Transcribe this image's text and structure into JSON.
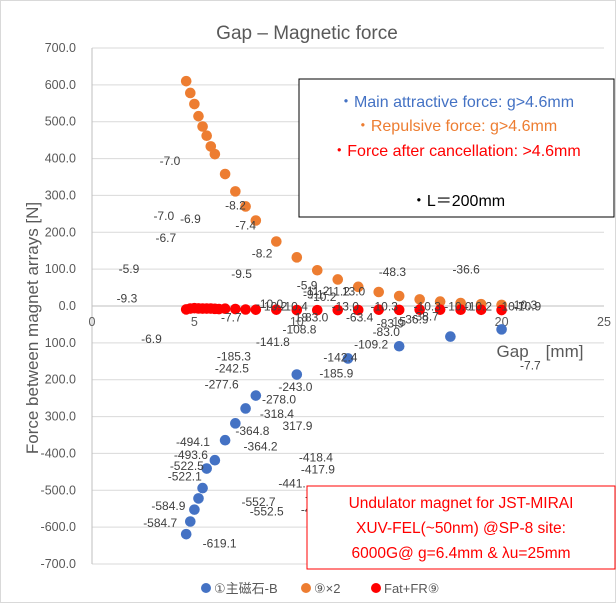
{
  "chart_data": {
    "type": "scatter",
    "title": "Gap – Magnetic force",
    "xlabel": "Gap　[mm]",
    "ylabel": "Force between magnet arrays [N]",
    "xlim": [
      0,
      25
    ],
    "ylim": [
      -700,
      700
    ],
    "xticks": [
      "0",
      "5",
      "10",
      "15",
      "20",
      "25"
    ],
    "yticks": [
      "700.0",
      "600.0",
      "500.0",
      "400.0",
      "300.0",
      "200.0",
      "100.0",
      "0.0",
      "100.0",
      "200.0",
      "300.0",
      "-400.0",
      "-500.0",
      "-600.0",
      "-700.0"
    ],
    "series": [
      {
        "name": "①主磁石-B",
        "color": "#4472C4",
        "x": [
          4.6,
          4.8,
          5.0,
          5.2,
          5.4,
          5.6,
          6.0,
          6.5,
          7.0,
          7.5,
          8.0,
          10.0,
          12.5,
          15.0,
          17.5,
          20.0
        ],
        "y": [
          -619.1,
          -584.7,
          -552.5,
          -522.1,
          -494.1,
          -441.0,
          -418.4,
          -364.2,
          -318.4,
          -278.0,
          -243.0,
          -185.9,
          -142.4,
          -109.2,
          -83.0,
          -63.4
        ]
      },
      {
        "name": "⑨×2",
        "color": "#ED7D31",
        "x": [
          4.6,
          4.8,
          5.0,
          5.2,
          5.4,
          5.6,
          5.8,
          6.0,
          6.5,
          7.0,
          7.5,
          8.0,
          9.0,
          10.0,
          11.0,
          12.0,
          13.0,
          14.0,
          15.0,
          16.0,
          17.0,
          18.0,
          19.0,
          20.0
        ],
        "y": [
          610,
          578,
          548,
          515,
          487,
          462,
          433,
          412,
          358,
          311,
          270,
          232,
          175,
          132,
          97,
          72,
          52,
          38,
          27,
          18,
          12,
          8,
          5,
          3
        ]
      },
      {
        "name": "Fat+FR⑨",
        "color": "#FF0000",
        "x": [
          4.6,
          4.8,
          5.0,
          5.2,
          5.4,
          5.6,
          5.8,
          6.0,
          6.2,
          6.5,
          7.0,
          7.5,
          8.0,
          9.0,
          10.0,
          11.0,
          12.0,
          13.0,
          14.0,
          15.0,
          16.0,
          17.0,
          18.0,
          19.0,
          20.0
        ],
        "y": [
          -9.3,
          -6.9,
          -5.9,
          -6.7,
          -7.0,
          -6.9,
          -7.0,
          -7.7,
          -8.2,
          -7.4,
          -8.2,
          -9.5,
          -10.0,
          -10.0,
          -10.9,
          -11.2,
          -11.0,
          -11.0,
          -10.0,
          -10.5,
          -10.0,
          -10.0,
          -10.1,
          -10.3,
          -10.9
        ]
      }
    ],
    "data_labels": [
      {
        "text": "-619.1",
        "x": 5.4,
        "y": -655
      },
      {
        "text": "-584.7",
        "x": 2.5,
        "y": -600
      },
      {
        "text": "-584.9",
        "x": 2.9,
        "y": -553
      },
      {
        "text": "-552.7",
        "x": 7.3,
        "y": -543
      },
      {
        "text": "-552.5",
        "x": 7.7,
        "y": -568
      },
      {
        "text": "-522.1",
        "x": 3.7,
        "y": -474
      },
      {
        "text": "-522.5",
        "x": 3.8,
        "y": -445
      },
      {
        "text": "-493.6",
        "x": 4.0,
        "y": -415
      },
      {
        "text": "-494.1",
        "x": 4.1,
        "y": -380
      },
      {
        "text": "-46",
        "x": 10.2,
        "y": -563
      },
      {
        "text": "-46",
        "x": 10.4,
        "y": -528
      },
      {
        "text": "-441.",
        "x": 9.1,
        "y": -493
      },
      {
        "text": "-417.9",
        "x": 10.2,
        "y": -454
      },
      {
        "text": "-418.4",
        "x": 10.1,
        "y": -422
      },
      {
        "text": "-364.2",
        "x": 7.4,
        "y": -392
      },
      {
        "text": "-364.8",
        "x": 7.0,
        "y": -350
      },
      {
        "text": "317.9",
        "x": 9.3,
        "y": -337
      },
      {
        "text": "-318.4",
        "x": 8.2,
        "y": -304
      },
      {
        "text": "-278.0",
        "x": 8.3,
        "y": -264
      },
      {
        "text": "-277.6",
        "x": 5.5,
        "y": -224
      },
      {
        "text": "-243.0",
        "x": 9.1,
        "y": -230
      },
      {
        "text": "-242.5",
        "x": 6.0,
        "y": -180
      },
      {
        "text": "-185.3",
        "x": 6.1,
        "y": -148
      },
      {
        "text": "-185.9",
        "x": 11.1,
        "y": -194
      },
      {
        "text": "-141.8",
        "x": 8.0,
        "y": -108
      },
      {
        "text": "-142.4",
        "x": 11.3,
        "y": -150
      },
      {
        "text": "-108.8",
        "x": 9.3,
        "y": -75
      },
      {
        "text": "-109.2",
        "x": 12.8,
        "y": -115
      },
      {
        "text": "-83.0",
        "x": 13.7,
        "y": -81
      },
      {
        "text": "-63.4",
        "x": 12.4,
        "y": -42
      },
      {
        "text": "18",
        "x": 9.9,
        "y": -42
      },
      {
        "text": "83.0",
        "x": 10.4,
        "y": -42
      },
      {
        "text": "-83.9",
        "x": 13.9,
        "y": -58
      },
      {
        "text": "-36.9",
        "x": 15.1,
        "y": -48
      },
      {
        "text": "-38.7",
        "x": 15.6,
        "y": -40
      },
      {
        "text": "-11.2",
        "x": 10.3,
        "y": 30
      },
      {
        "text": "-5.9",
        "x": 10.0,
        "y": 45
      },
      {
        "text": "-9.1",
        "x": 10.3,
        "y": 20
      },
      {
        "text": "-10.2",
        "x": 10.6,
        "y": 13
      },
      {
        "text": "-11.2",
        "x": 11.3,
        "y": 28
      },
      {
        "text": "13.0",
        "x": 12.2,
        "y": 28
      },
      {
        "text": "-10.2",
        "x": 8.2,
        "y": -12
      },
      {
        "text": "-10.4",
        "x": 9.2,
        "y": -12
      },
      {
        "text": "-10.0",
        "x": 8.0,
        "y": -5
      },
      {
        "text": "-13.0",
        "x": 11.7,
        "y": -12
      },
      {
        "text": "-10.3",
        "x": 13.6,
        "y": -12
      },
      {
        "text": "-10.3",
        "x": 15.7,
        "y": -12
      },
      {
        "text": "-10.0",
        "x": 17.2,
        "y": -12
      },
      {
        "text": "-10.2",
        "x": 18.2,
        "y": -12
      },
      {
        "text": "-10.7",
        "x": 19.8,
        "y": -12
      },
      {
        "text": "-10.9",
        "x": 20.6,
        "y": -12
      },
      {
        "text": "-10.3",
        "x": 20.4,
        "y": -8
      },
      {
        "text": "-48.3",
        "x": 14.0,
        "y": 82
      },
      {
        "text": "-36.6",
        "x": 17.6,
        "y": 88
      },
      {
        "text": "-7.0",
        "x": 3.3,
        "y": 383
      },
      {
        "text": "-8.2",
        "x": 6.5,
        "y": 262
      },
      {
        "text": "-7.0",
        "x": 3.0,
        "y": 233
      },
      {
        "text": "-6.9",
        "x": 4.3,
        "y": 225
      },
      {
        "text": "-7.4",
        "x": 7.0,
        "y": 207
      },
      {
        "text": "-6.7",
        "x": 3.1,
        "y": 173
      },
      {
        "text": "-8.2",
        "x": 7.8,
        "y": 131
      },
      {
        "text": "-5.9",
        "x": 1.3,
        "y": 89
      },
      {
        "text": "-9.5",
        "x": 6.8,
        "y": 76
      },
      {
        "text": "-9.3",
        "x": 1.2,
        "y": 10
      },
      {
        "text": "-7.7",
        "x": 6.3,
        "y": -42
      },
      {
        "text": "-6.9",
        "x": 2.4,
        "y": -100
      },
      {
        "text": "-7.7",
        "x": 20.9,
        "y": -172
      }
    ]
  },
  "annotations": {
    "force_box": {
      "line1": "・Main attractive force: g>4.6mm",
      "line2": "・Repulsive force: g>4.6mm",
      "line3": "・Force after cancellation: >4.6mm",
      "line4": "・L＝200mm",
      "line1_color": "#4472C4",
      "line2_color": "#ED7D31",
      "line3_color": "#FF0000"
    },
    "magnet_box": {
      "line1": "Undulator magnet for JST-MIRAI",
      "line2": "XUV-FEL(~50nm) @SP-8 site:",
      "line3": "6000G@ g=6.4mm & λu=25mm",
      "color": "#FF0000"
    }
  },
  "legend": {
    "items": [
      {
        "label": "①主磁石-B",
        "color": "#4472C4"
      },
      {
        "label": "⑨×2",
        "color": "#ED7D31"
      },
      {
        "label": "Fat+FR⑨",
        "color": "#FF0000"
      }
    ]
  }
}
